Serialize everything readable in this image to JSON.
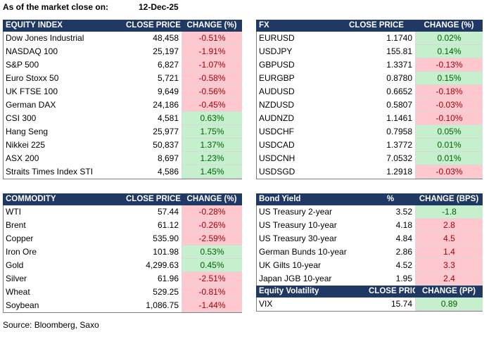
{
  "header": {
    "label": "As of the market close on:",
    "date": "12-Dec-25"
  },
  "colors": {
    "up": {
      "fill": "#c6efce",
      "text": "#006100"
    },
    "down": {
      "fill": "#ffc7ce",
      "text": "#9c0006"
    },
    "header": "#1f3864"
  },
  "tables": [
    {
      "columns": [
        "EQUITY INDEX",
        "CLOSE PRICE",
        "CHANGE (%)"
      ],
      "higher_is": "up",
      "rows": [
        [
          "Dow Jones Industrial",
          "48,458",
          "-0.51%"
        ],
        [
          "NASDAQ 100",
          "25,197",
          "-1.91%"
        ],
        [
          "S&P 500",
          "6,827",
          "-1.07%"
        ],
        [
          "Euro Stoxx 50",
          "5,721",
          "-0.58%"
        ],
        [
          "UK FTSE 100",
          "9,649",
          "-0.56%"
        ],
        [
          "German DAX",
          "24,186",
          "-0.45%"
        ],
        [
          "CSI 300",
          "4,581",
          "0.63%"
        ],
        [
          "Hang Seng",
          "25,977",
          "1.75%"
        ],
        [
          "Nikkei 225",
          "50,837",
          "1.37%"
        ],
        [
          "ASX 200",
          "8,697",
          "1.23%"
        ],
        [
          "Straits Times Index STI",
          "4,586",
          "1.45%"
        ]
      ]
    },
    {
      "columns": [
        "FX",
        "CLOSE PRICE",
        "CHANGE (%)"
      ],
      "higher_is": "up",
      "rows": [
        [
          "EURUSD",
          "1.1740",
          "0.02%"
        ],
        [
          "USDJPY",
          "155.81",
          "0.14%"
        ],
        [
          "GBPUSD",
          "1.3371",
          "-0.13%"
        ],
        [
          "EURGBP",
          "0.8780",
          "0.15%"
        ],
        [
          "AUDUSD",
          "0.6652",
          "-0.18%"
        ],
        [
          "NZDUSD",
          "0.5807",
          "-0.03%"
        ],
        [
          "AUDNZD",
          "1.1461",
          "-0.10%"
        ],
        [
          "USDCHF",
          "0.7958",
          "0.05%"
        ],
        [
          "USDCAD",
          "1.3772",
          "0.01%"
        ],
        [
          "USDCNH",
          "7.0532",
          "0.01%"
        ],
        [
          "USDSGD",
          "1.2918",
          "-0.03%"
        ]
      ]
    },
    {
      "columns": [
        "COMMODITY",
        "CLOSE PRICE",
        "CHANGE (%)"
      ],
      "higher_is": "up",
      "rows": [
        [
          "WTI",
          "57.44",
          "-0.28%"
        ],
        [
          "Brent",
          "61.12",
          "-0.26%"
        ],
        [
          "Copper",
          "535.90",
          "-2.59%"
        ],
        [
          "Iron Ore",
          "101.98",
          "0.53%"
        ],
        [
          "Gold",
          "4,299.63",
          "0.45%"
        ],
        [
          "Silver",
          "61.96",
          "-2.51%"
        ],
        [
          "Wheat",
          "529.25",
          "-0.81%"
        ],
        [
          "Soybean",
          "1,086.75",
          "-1.44%"
        ]
      ]
    },
    {
      "columns": [
        "Bond Yield",
        "%",
        "CHANGE (BPS)"
      ],
      "higher_is": "down",
      "rows": [
        [
          "US Treasury 2-year",
          "3.52",
          "-1.8"
        ],
        [
          "US Treasury 10-year",
          "4.18",
          "2.8"
        ],
        [
          "US Treasury 30-year",
          "4.84",
          "4.5"
        ],
        [
          "German Bunds 10-year",
          "2.86",
          "1.4"
        ],
        [
          "UK Gilts 10-year",
          "4.52",
          "3.3"
        ],
        [
          "Japan JGB 10-year",
          "1.95",
          "2.4"
        ]
      ]
    },
    {
      "columns": [
        "Equity Volatility",
        "CLOSE PRICE",
        "CHANGE (PP)"
      ],
      "higher_is": "up",
      "rows": [
        [
          "VIX",
          "15.74",
          "0.89"
        ]
      ]
    }
  ],
  "source": "Source: Bloomberg, Saxo"
}
